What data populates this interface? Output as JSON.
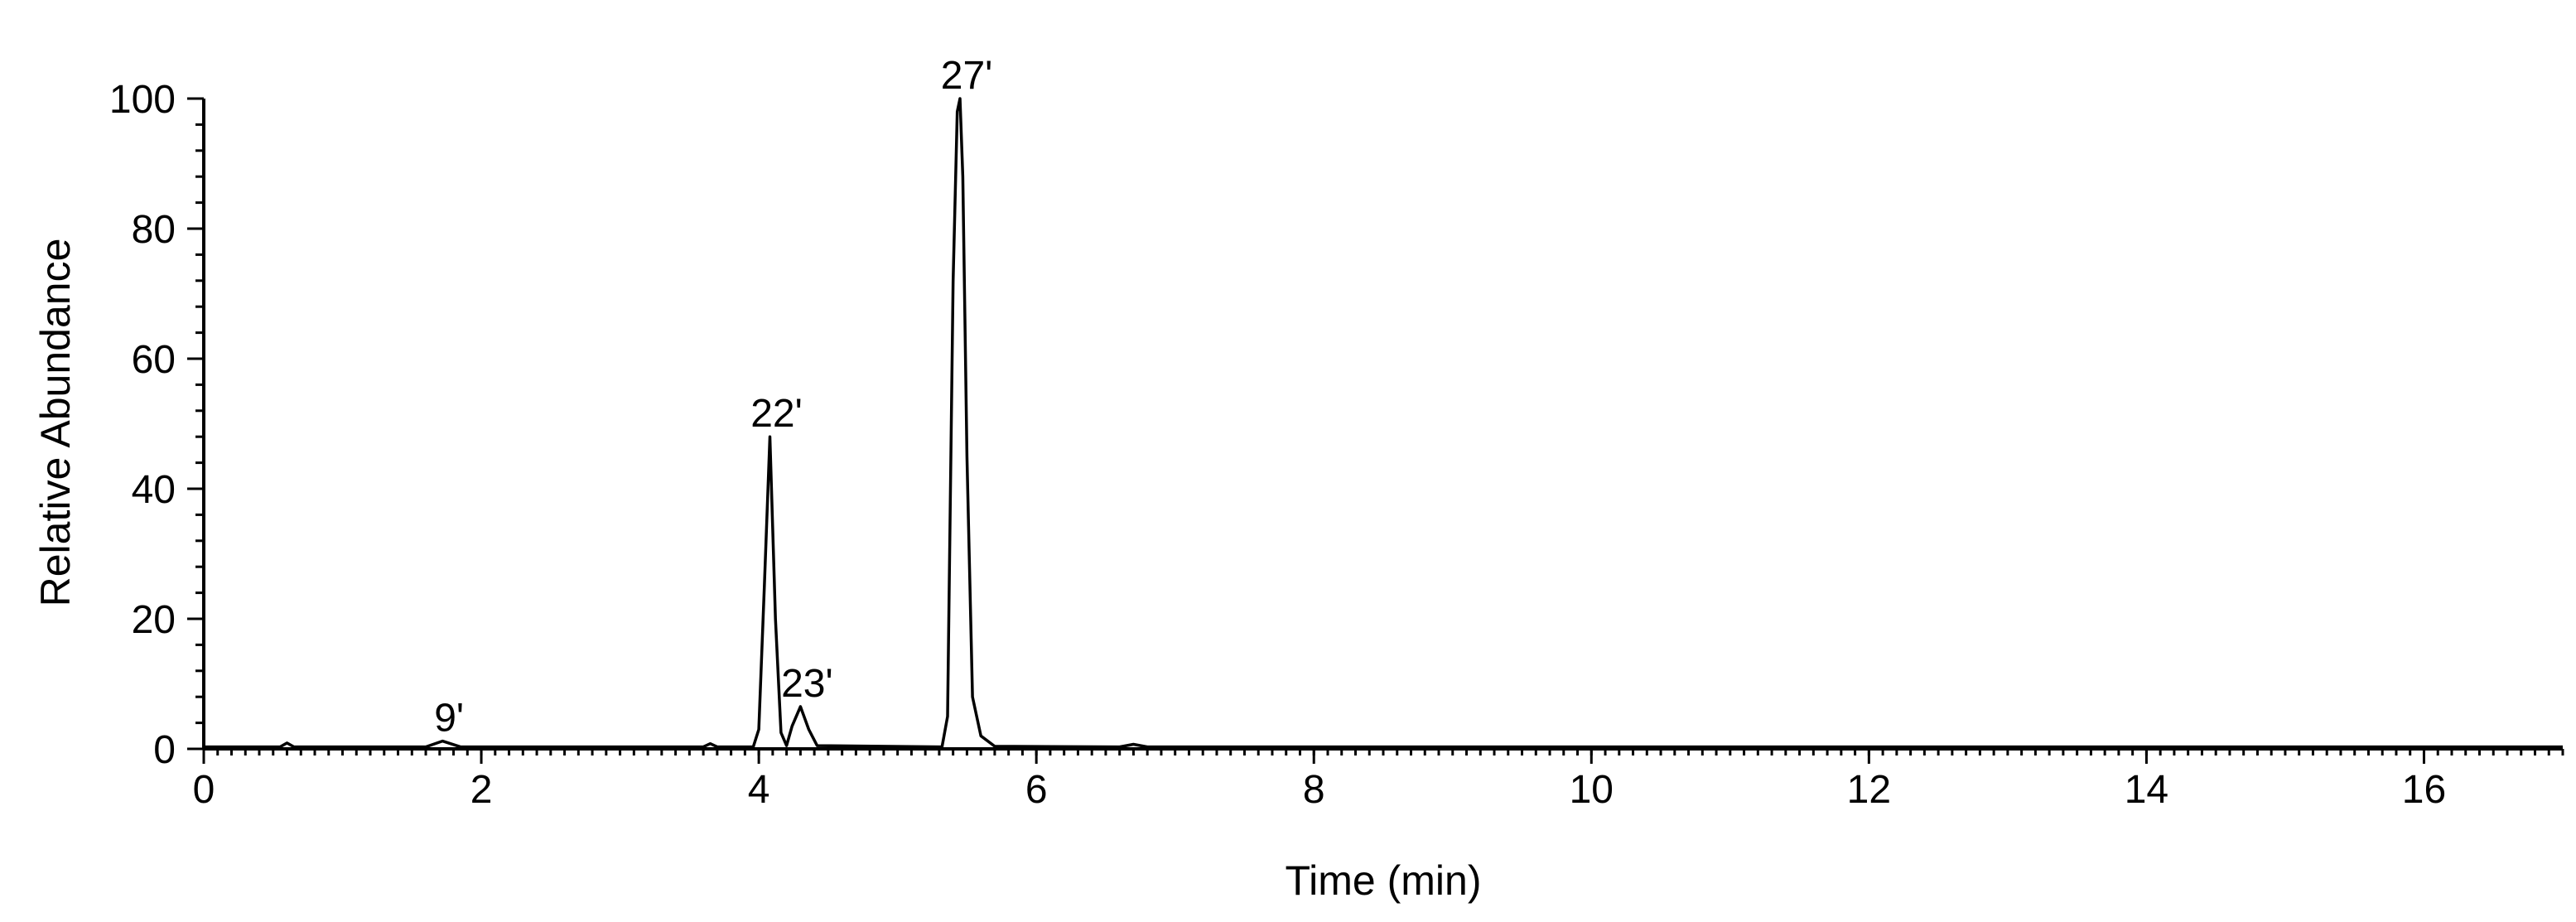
{
  "chart_data": {
    "type": "line",
    "xlabel": "Time (min)",
    "ylabel": "Relative Abundance",
    "xlim": [
      0,
      17
    ],
    "ylim": [
      0,
      100
    ],
    "x_ticks": [
      0,
      2,
      4,
      6,
      8,
      10,
      12,
      14,
      16
    ],
    "y_ticks": [
      0,
      20,
      40,
      60,
      80,
      100
    ],
    "x_minor_step": 0.1,
    "y_minor_step": 4,
    "grid": false,
    "peaks": [
      {
        "label": "9'",
        "time": 1.72,
        "abundance": 1.2
      },
      {
        "label": "22'",
        "time": 4.08,
        "abundance": 48
      },
      {
        "label": "23'",
        "time": 4.3,
        "abundance": 6.5
      },
      {
        "label": "27'",
        "time": 5.45,
        "abundance": 100
      }
    ],
    "series": [
      {
        "values": [
          [
            0,
            0.3
          ],
          [
            0.55,
            0.3
          ],
          [
            0.6,
            0.9
          ],
          [
            0.65,
            0.3
          ],
          [
            1.6,
            0.3
          ],
          [
            1.72,
            1.2
          ],
          [
            1.85,
            0.3
          ],
          [
            3.6,
            0.3
          ],
          [
            3.65,
            0.8
          ],
          [
            3.7,
            0.3
          ],
          [
            3.96,
            0.3
          ],
          [
            4.0,
            3.0
          ],
          [
            4.04,
            25
          ],
          [
            4.08,
            48
          ],
          [
            4.12,
            20
          ],
          [
            4.16,
            2.5
          ],
          [
            4.2,
            0.5
          ],
          [
            4.24,
            3.5
          ],
          [
            4.3,
            6.5
          ],
          [
            4.36,
            3.0
          ],
          [
            4.42,
            0.5
          ],
          [
            5.32,
            0.3
          ],
          [
            5.36,
            5.0
          ],
          [
            5.4,
            72
          ],
          [
            5.43,
            98
          ],
          [
            5.45,
            100
          ],
          [
            5.47,
            88
          ],
          [
            5.5,
            45
          ],
          [
            5.54,
            8
          ],
          [
            5.6,
            2.0
          ],
          [
            5.7,
            0.4
          ],
          [
            6.6,
            0.3
          ],
          [
            6.7,
            0.7
          ],
          [
            6.8,
            0.3
          ],
          [
            17,
            0.3
          ]
        ]
      }
    ]
  }
}
